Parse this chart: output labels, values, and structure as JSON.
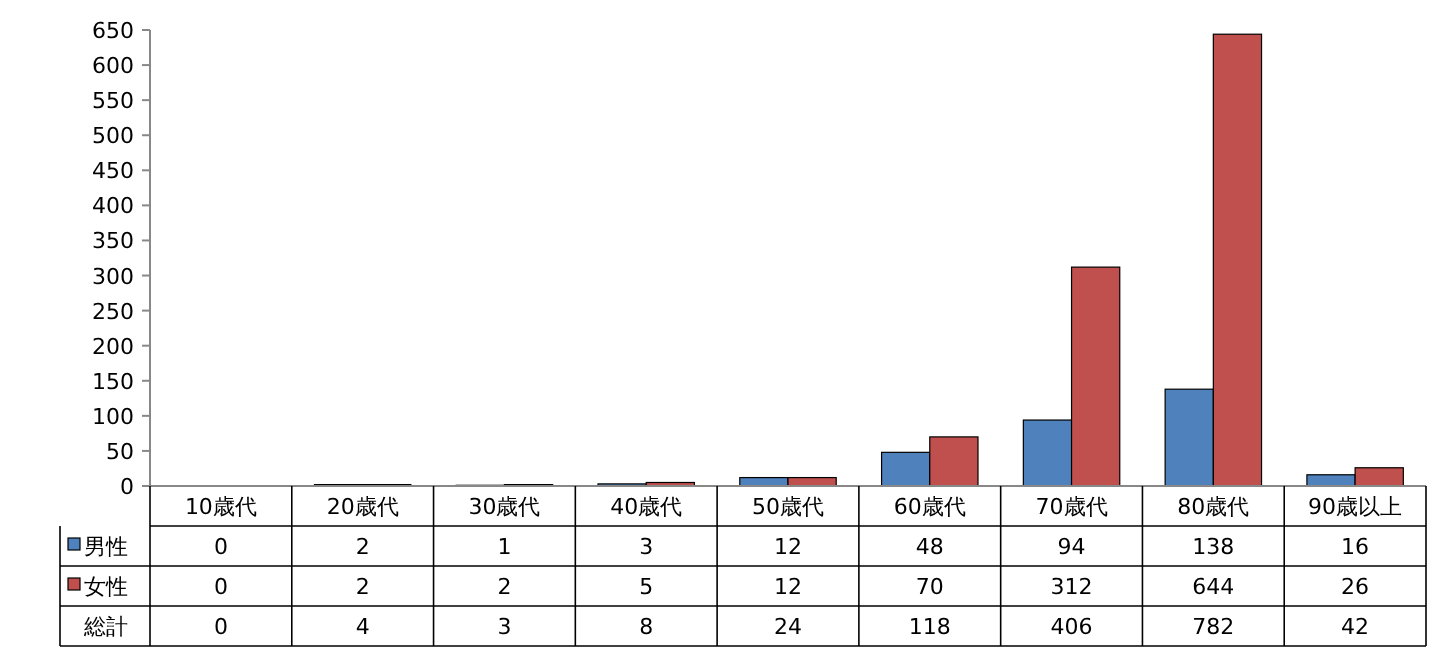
{
  "chart_data": {
    "type": "bar",
    "categories": [
      "10歳代",
      "20歳代",
      "30歳代",
      "40歳代",
      "50歳代",
      "60歳代",
      "70歳代",
      "80歳代",
      "90歳以上"
    ],
    "series": [
      {
        "name": "男性",
        "color": "#4f81bd",
        "values": [
          0,
          2,
          1,
          3,
          12,
          48,
          94,
          138,
          16
        ]
      },
      {
        "name": "女性",
        "color": "#c0504d",
        "values": [
          0,
          2,
          2,
          5,
          12,
          70,
          312,
          644,
          26
        ]
      }
    ],
    "ylim": [
      0,
      650
    ],
    "yticks": [
      0,
      50,
      100,
      150,
      200,
      250,
      300,
      350,
      400,
      450,
      500,
      550,
      600,
      650
    ],
    "data_labels": true,
    "legend": "bottom",
    "annotations": [
      "総計",
      "0",
      "4",
      "3",
      "8",
      "24",
      "118",
      "406",
      "782",
      "42"
    ]
  }
}
